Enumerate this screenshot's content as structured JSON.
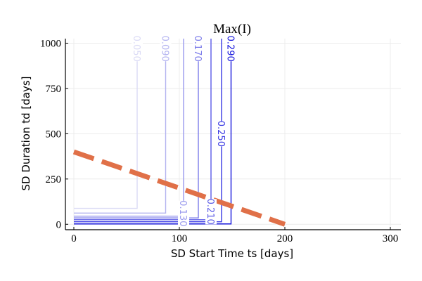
{
  "chart_data": {
    "type": "line",
    "title": "Max(I)",
    "xlabel": "SD Start Time ts [days]",
    "ylabel": "SD Duration td [days]",
    "xlim": [
      -8,
      310
    ],
    "ylim": [
      -30,
      1025
    ],
    "xticks": [
      0,
      100,
      200,
      300
    ],
    "yticks": [
      0,
      250,
      500,
      750,
      1000
    ],
    "xtick_labels": [
      "0",
      "100",
      "200",
      "300"
    ],
    "ytick_labels": [
      "0",
      "250",
      "500",
      "750",
      "1000"
    ],
    "grid": true,
    "legend": "none",
    "contours": [
      {
        "level": "0.050",
        "x_edge": 60,
        "y_floor": 88,
        "color": "#dadaf5",
        "label": "0.050",
        "label_at": [
          60,
          970
        ]
      },
      {
        "level": "0.090",
        "x_edge": 87,
        "y_floor": 62,
        "color": "#b3b3f0",
        "label": "0.090",
        "label_at": [
          87,
          970
        ]
      },
      {
        "level": "0.130",
        "x_edge": 104,
        "y_floor": 45,
        "color": "#9a9aee",
        "label": "0.130",
        "label_at": [
          104,
          60
        ]
      },
      {
        "level": "0.170",
        "x_edge": 118,
        "y_floor": 35,
        "color": "#7c7cea",
        "label": "0.170",
        "label_at": [
          118,
          970
        ]
      },
      {
        "level": "0.210",
        "x_edge": 130,
        "y_floor": 25,
        "color": "#5a5ae6",
        "label": "0.210",
        "label_at": [
          130,
          70
        ]
      },
      {
        "level": "0.250",
        "x_edge": 140,
        "y_floor": 14,
        "color": "#3a3ae3",
        "label": "0.250",
        "label_at": [
          140,
          500
        ]
      },
      {
        "level": "0.290",
        "x_edge": 149,
        "y_floor": 2,
        "color": "#1414dc",
        "label": "0.290",
        "label_at": [
          149,
          970
        ]
      }
    ],
    "overlay_line": {
      "x": [
        0,
        200
      ],
      "y": [
        400,
        0
      ],
      "color": "#e07048",
      "style": "dashed"
    }
  }
}
